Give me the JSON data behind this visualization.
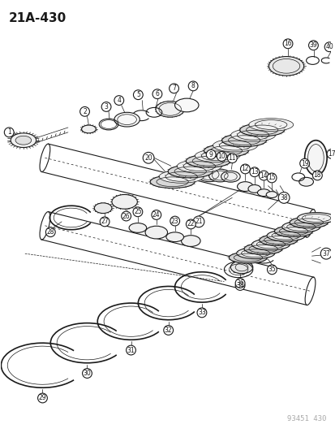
{
  "title": "21A-430",
  "footer": "93451 430",
  "bg_color": "#ffffff",
  "line_color": "#1a1a1a",
  "title_fontsize": 11,
  "footer_fontsize": 6.5,
  "fig_width": 4.14,
  "fig_height": 5.33,
  "dpi": 100
}
